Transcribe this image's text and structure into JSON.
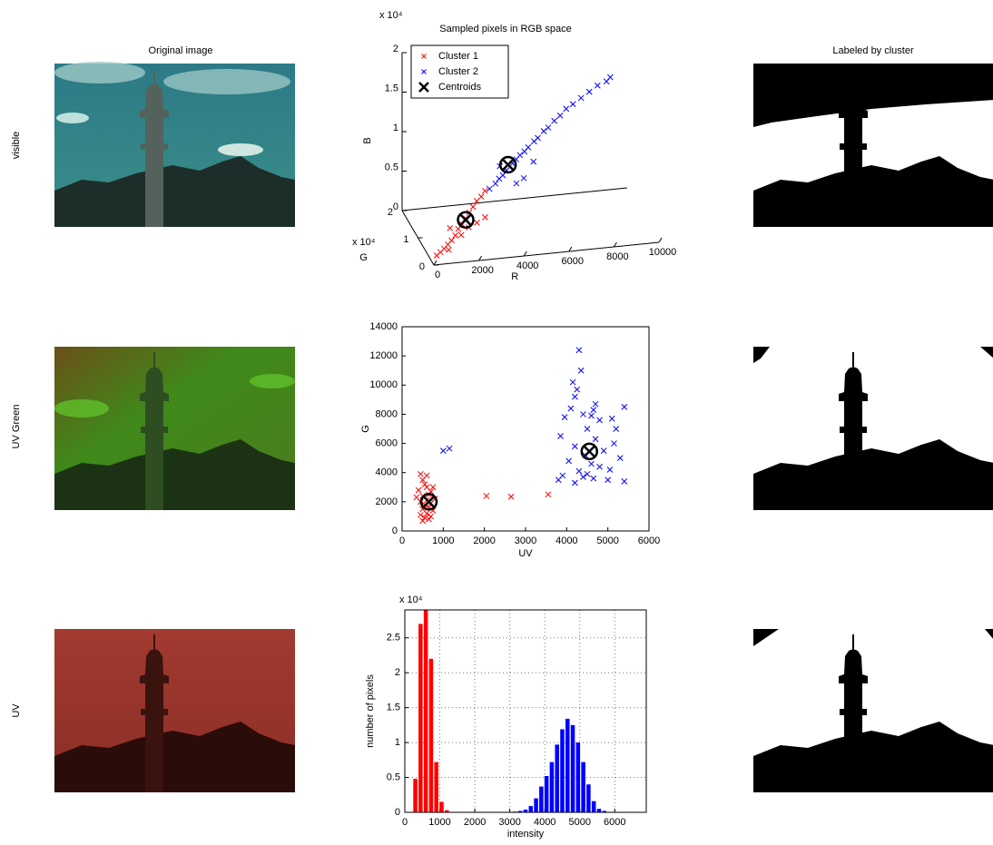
{
  "panels": {
    "left_title": "Original image",
    "right_title": "Labeled by cluster",
    "rows": [
      "visible",
      "UV Green",
      "UV"
    ]
  },
  "chart_data": [
    {
      "type": "scatter3d",
      "title": "Sampled pixels in RGB space",
      "xlabel": "R",
      "ylabel": "G",
      "zlabel": "B",
      "y_multiplier": "x 10⁴",
      "z_multiplier": "x 10⁴",
      "xlim": [
        0,
        10000
      ],
      "xticks": [
        0,
        2000,
        4000,
        6000,
        8000,
        10000
      ],
      "ylim": [
        0,
        2
      ],
      "yticks": [
        0,
        1,
        2
      ],
      "zlim": [
        0,
        2
      ],
      "zticks": [
        0,
        0.5,
        1,
        1.5,
        2
      ],
      "legend": "upper left",
      "series": [
        {
          "name": "Cluster 1",
          "color": "#ff0000",
          "marker": "x",
          "x": [
            200,
            400,
            600,
            800,
            1000,
            1200,
            1400,
            1600,
            1800,
            2000,
            2200,
            2400,
            2600,
            2800,
            1500,
            1900,
            2300,
            2700,
            1000,
            800
          ],
          "y": [
            0.1,
            0.15,
            0.2,
            0.25,
            0.3,
            0.35,
            0.45,
            0.5,
            0.55,
            0.6,
            0.65,
            0.7,
            0.7,
            0.75,
            0.4,
            0.5,
            0.55,
            0.6,
            0.4,
            0.2
          ],
          "z": [
            0.08,
            0.1,
            0.12,
            0.15,
            0.18,
            0.22,
            0.26,
            0.3,
            0.35,
            0.4,
            0.45,
            0.5,
            0.55,
            0.6,
            0.2,
            0.25,
            0.28,
            0.32,
            0.3,
            0.1
          ]
        },
        {
          "name": "Cluster 2",
          "color": "#0000ff",
          "marker": "x",
          "x": [
            3000,
            3300,
            3500,
            3700,
            3900,
            4200,
            4400,
            4600,
            4800,
            5000,
            5300,
            5500,
            5800,
            6000,
            6300,
            6600,
            6900,
            7200,
            7600,
            8000,
            8400,
            8800,
            9000,
            4300,
            4700,
            3600,
            5200
          ],
          "y": [
            0.75,
            0.8,
            0.85,
            0.9,
            0.95,
            1.0,
            1.05,
            1.1,
            1.1,
            1.15,
            1.2,
            1.25,
            1.3,
            1.3,
            1.35,
            1.4,
            1.45,
            1.45,
            1.5,
            1.55,
            1.6,
            1.6,
            1.65,
            0.9,
            1.0,
            0.95,
            1.1
          ],
          "z": [
            0.62,
            0.66,
            0.7,
            0.72,
            0.76,
            0.82,
            0.85,
            0.88,
            0.92,
            0.95,
            1.0,
            1.02,
            1.08,
            1.12,
            1.18,
            1.22,
            1.28,
            1.33,
            1.38,
            1.43,
            1.48,
            1.52,
            1.55,
            0.6,
            0.62,
            0.82,
            0.78
          ]
        },
        {
          "name": "Centroids",
          "color": "#000000",
          "marker": "circled-x",
          "x": [
            1800,
            4000
          ],
          "y": [
            0.55,
            1.0
          ],
          "z": [
            0.33,
            0.81
          ]
        }
      ]
    },
    {
      "type": "scatter",
      "xlabel": "UV",
      "ylabel": "G",
      "grid": false,
      "xlim": [
        0,
        6000
      ],
      "xticks": [
        0,
        1000,
        2000,
        3000,
        4000,
        5000,
        6000
      ],
      "ylim": [
        0,
        14000
      ],
      "yticks": [
        0,
        2000,
        4000,
        6000,
        8000,
        10000,
        12000,
        14000
      ],
      "series": [
        {
          "color": "#ff0000",
          "marker": "x",
          "x": [
            450,
            500,
            550,
            600,
            400,
            700,
            650,
            500,
            350,
            800,
            600,
            450,
            700,
            550,
            650,
            500,
            750,
            600,
            450,
            700,
            550,
            650,
            500,
            600,
            750,
            2050,
            2650,
            3550
          ],
          "y": [
            3900,
            3500,
            3200,
            3000,
            2800,
            2700,
            2500,
            2400,
            2300,
            2200,
            2100,
            2000,
            1900,
            1800,
            1600,
            1500,
            1400,
            1200,
            1100,
            1000,
            900,
            800,
            700,
            3800,
            3000,
            2400,
            2350,
            2500
          ]
        },
        {
          "color": "#0000ff",
          "marker": "x",
          "x": [
            1000,
            1150,
            4300,
            4350,
            4150,
            4250,
            4200,
            4700,
            5400,
            4100,
            4650,
            4400,
            4600,
            3950,
            5100,
            4800,
            5200,
            4500,
            3850,
            4700,
            5150,
            4200,
            4900,
            4450,
            5300,
            4050,
            4600,
            4800,
            5050,
            4300,
            3900,
            4650,
            5400,
            4200,
            4500,
            5000,
            3800,
            4400
          ],
          "y": [
            5500,
            5650,
            12400,
            11000,
            10200,
            9700,
            9200,
            8700,
            8500,
            8400,
            8300,
            8000,
            7900,
            7800,
            7700,
            7600,
            7000,
            7000,
            6500,
            6300,
            6000,
            5800,
            5500,
            5200,
            5000,
            4800,
            4600,
            4400,
            4200,
            4100,
            3800,
            3600,
            3400,
            3300,
            3900,
            3500,
            3500,
            3700
          ]
        },
        {
          "color": "#000000",
          "marker": "circled-x",
          "x": [
            650,
            4550
          ],
          "y": [
            2000,
            5450
          ]
        }
      ]
    },
    {
      "type": "bar",
      "xlabel": "intensity",
      "ylabel": "number of pixels",
      "y_multiplier": "x 10⁴",
      "grid": true,
      "xlim": [
        0,
        6900
      ],
      "xticks": [
        0,
        1000,
        2000,
        3000,
        4000,
        5000,
        6000
      ],
      "ylim": [
        0,
        2.9
      ],
      "yticks": [
        0,
        0.5,
        1,
        1.5,
        2,
        2.5
      ],
      "x": [
        300,
        450,
        600,
        750,
        900,
        1050,
        1200,
        1350,
        1500,
        1650,
        1800,
        1950,
        2100,
        2250,
        2400,
        2550,
        2700,
        2850,
        3000,
        3150,
        3300,
        3450,
        3600,
        3750,
        3900,
        4050,
        4200,
        4350,
        4500,
        4650,
        4800,
        4950,
        5100,
        5250,
        5400,
        5550,
        5700
      ],
      "series": [
        {
          "color": "#ff0000",
          "values": [
            0.48,
            2.7,
            2.9,
            2.2,
            0.72,
            0.15,
            0.03,
            null,
            null,
            null,
            null,
            null,
            null,
            null,
            null,
            null,
            null,
            null,
            null,
            null,
            null,
            null,
            null,
            null,
            null,
            null,
            null,
            null,
            null,
            null,
            null,
            null,
            null,
            null,
            null,
            null,
            null
          ]
        },
        {
          "color": "#0000ff",
          "values": [
            null,
            null,
            null,
            null,
            null,
            null,
            null,
            null,
            null,
            null,
            null,
            null,
            null,
            null,
            null,
            null,
            null,
            null,
            null,
            0.01,
            0.02,
            0.04,
            0.09,
            0.2,
            0.37,
            0.52,
            0.72,
            0.97,
            1.19,
            1.34,
            1.25,
            1.0,
            0.72,
            0.4,
            0.16,
            0.05,
            0.02
          ]
        }
      ]
    }
  ]
}
